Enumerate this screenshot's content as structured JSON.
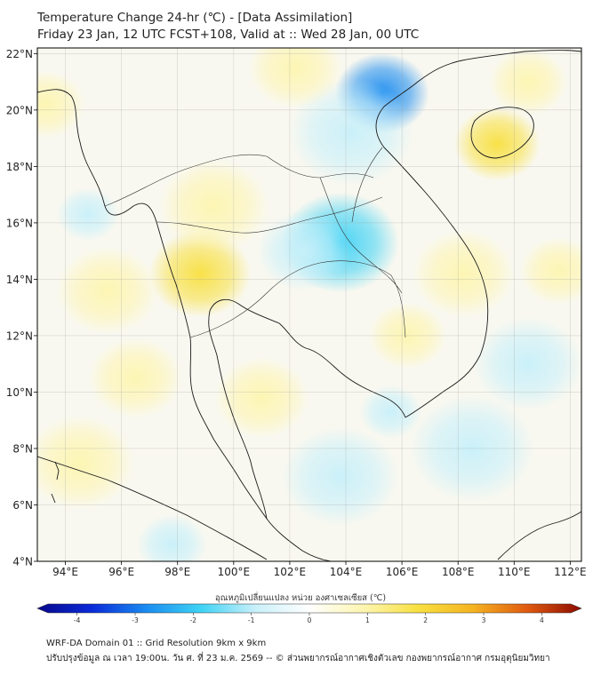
{
  "title_line1": "Temperature Change 24-hr (℃) - [Data Assimilation]",
  "title_line2": "Friday 23 Jan, 12 UTC FCST+108, Valid at :: Wed 28 Jan, 00 UTC",
  "lat_labels": [
    "22°N",
    "20°N",
    "18°N",
    "16°N",
    "14°N",
    "12°N",
    "10°N",
    "8°N",
    "6°N",
    "4°N"
  ],
  "lat_values": [
    22,
    20,
    18,
    16,
    14,
    12,
    10,
    8,
    6,
    4
  ],
  "lon_labels": [
    "94°E",
    "96°E",
    "98°E",
    "100°E",
    "102°E",
    "104°E",
    "106°E",
    "108°E",
    "110°E",
    "112°E"
  ],
  "lon_values": [
    94,
    96,
    98,
    100,
    102,
    104,
    106,
    108,
    110,
    112
  ],
  "map_extent": {
    "lon_min": 93,
    "lon_max": 112.4,
    "lat_min": 4,
    "lat_max": 22.2
  },
  "colorbar": {
    "label": "อุณหภูมิเปลี่ยนแปลง หน่วย องศาเซลเซียส (℃)",
    "ticks": [
      "-4",
      "-3",
      "-2",
      "-1",
      "0",
      "1",
      "2",
      "3",
      "4"
    ],
    "tick_values": [
      -4,
      -3,
      -2,
      -1,
      0,
      1,
      2,
      3,
      4
    ],
    "min": -4.5,
    "max": 4.5,
    "colors": [
      "#08088c",
      "#0a2ad8",
      "#1a8cf0",
      "#3ed2f5",
      "#c8f0fa",
      "#ffffff",
      "#fdf5b0",
      "#f8e040",
      "#f5b420",
      "#e05a10",
      "#8c0a00"
    ]
  },
  "anomalies": [
    {
      "lon": 105.3,
      "lat": 20.6,
      "value": -3.0,
      "r": 1.2
    },
    {
      "lon": 104.2,
      "lat": 19.2,
      "value": -1.2,
      "r": 1.6
    },
    {
      "lon": 103.8,
      "lat": 15.3,
      "value": -1.4,
      "r": 1.5
    },
    {
      "lon": 102.5,
      "lat": 15.0,
      "value": -1.0,
      "r": 1.2
    },
    {
      "lon": 105.6,
      "lat": 9.3,
      "value": -1.1,
      "r": 0.8
    },
    {
      "lon": 94.8,
      "lat": 16.3,
      "value": -0.8,
      "r": 0.8
    },
    {
      "lon": 97.8,
      "lat": 4.6,
      "value": -1.0,
      "r": 0.9
    },
    {
      "lon": 109.4,
      "lat": 18.8,
      "value": 1.6,
      "r": 1.1
    },
    {
      "lon": 98.8,
      "lat": 14.2,
      "value": 1.4,
      "r": 1.3
    },
    {
      "lon": 99.3,
      "lat": 16.6,
      "value": 1.1,
      "r": 1.4
    },
    {
      "lon": 108.2,
      "lat": 14.2,
      "value": 1.3,
      "r": 1.3
    },
    {
      "lon": 111.6,
      "lat": 14.3,
      "value": 1.0,
      "r": 1.0
    },
    {
      "lon": 93.3,
      "lat": 20.2,
      "value": 1.0,
      "r": 1.0
    },
    {
      "lon": 102.2,
      "lat": 21.5,
      "value": 0.9,
      "r": 1.2
    },
    {
      "lon": 101.0,
      "lat": 9.8,
      "value": 0.8,
      "r": 1.2
    },
    {
      "lon": 95.5,
      "lat": 13.6,
      "value": 0.9,
      "r": 1.3
    },
    {
      "lon": 110.5,
      "lat": 21.0,
      "value": 0.7,
      "r": 1.0
    },
    {
      "lon": 94.5,
      "lat": 7.5,
      "value": 0.6,
      "r": 1.4
    },
    {
      "lon": 108.5,
      "lat": 8.0,
      "value": -0.5,
      "r": 1.6
    },
    {
      "lon": 103.8,
      "lat": 7.0,
      "value": -0.6,
      "r": 1.5
    },
    {
      "lon": 96.5,
      "lat": 10.5,
      "value": 0.6,
      "r": 1.2
    },
    {
      "lon": 106.2,
      "lat": 12.0,
      "value": 0.9,
      "r": 1.0
    },
    {
      "lon": 110.5,
      "lat": 11.0,
      "value": -0.5,
      "r": 1.4
    }
  ],
  "footer_line1": "WRF-DA Domain 01 :: Grid Resolution 9km x 9km",
  "footer_line2": "ปรับปรุงข้อมูล ณ เวลา 19:00น. วัน ศ. ที่ 23 ม.ค. 2569 -- © ส่วนพยากรณ์อากาศเชิงตัวเลข กองพยากรณ์อากาศ กรมอุตุนิยมวิทยา"
}
